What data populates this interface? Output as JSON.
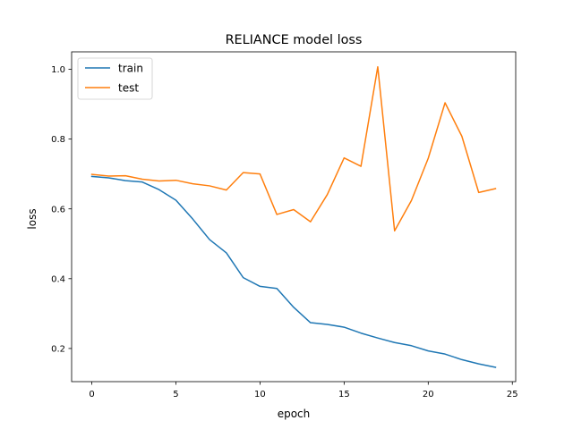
{
  "chart_data": {
    "type": "line",
    "title": "RELIANCE model loss",
    "xlabel": "epoch",
    "ylabel": "loss",
    "xlim": [
      -1.2,
      25.2
    ],
    "ylim": [
      0.105,
      1.05
    ],
    "grid": false,
    "legend_position": "upper-left",
    "x": [
      0,
      1,
      2,
      3,
      4,
      5,
      6,
      7,
      8,
      9,
      10,
      11,
      12,
      13,
      14,
      15,
      16,
      17,
      18,
      19,
      20,
      21,
      22,
      23,
      24
    ],
    "x_ticks": [
      0,
      5,
      10,
      15,
      20,
      25
    ],
    "x_tick_labels": [
      "0",
      "5",
      "10",
      "15",
      "20",
      "25"
    ],
    "y_ticks": [
      0.2,
      0.4,
      0.6,
      0.8,
      1.0
    ],
    "y_tick_labels": [
      "0.2",
      "0.4",
      "0.6",
      "0.8",
      "1.0"
    ],
    "series": [
      {
        "name": "train",
        "color": "#1f77b4",
        "values": [
          0.693,
          0.689,
          0.681,
          0.677,
          0.655,
          0.625,
          0.571,
          0.512,
          0.474,
          0.403,
          0.378,
          0.372,
          0.318,
          0.274,
          0.269,
          0.261,
          0.244,
          0.23,
          0.217,
          0.208,
          0.193,
          0.184,
          0.168,
          0.156,
          0.146
        ]
      },
      {
        "name": "test",
        "color": "#ff7f0e",
        "values": [
          0.699,
          0.694,
          0.695,
          0.685,
          0.68,
          0.682,
          0.672,
          0.666,
          0.654,
          0.704,
          0.7,
          0.584,
          0.598,
          0.563,
          0.641,
          0.746,
          0.722,
          1.007,
          0.537,
          0.624,
          0.745,
          0.904,
          0.808,
          0.647,
          0.658
        ]
      }
    ]
  }
}
